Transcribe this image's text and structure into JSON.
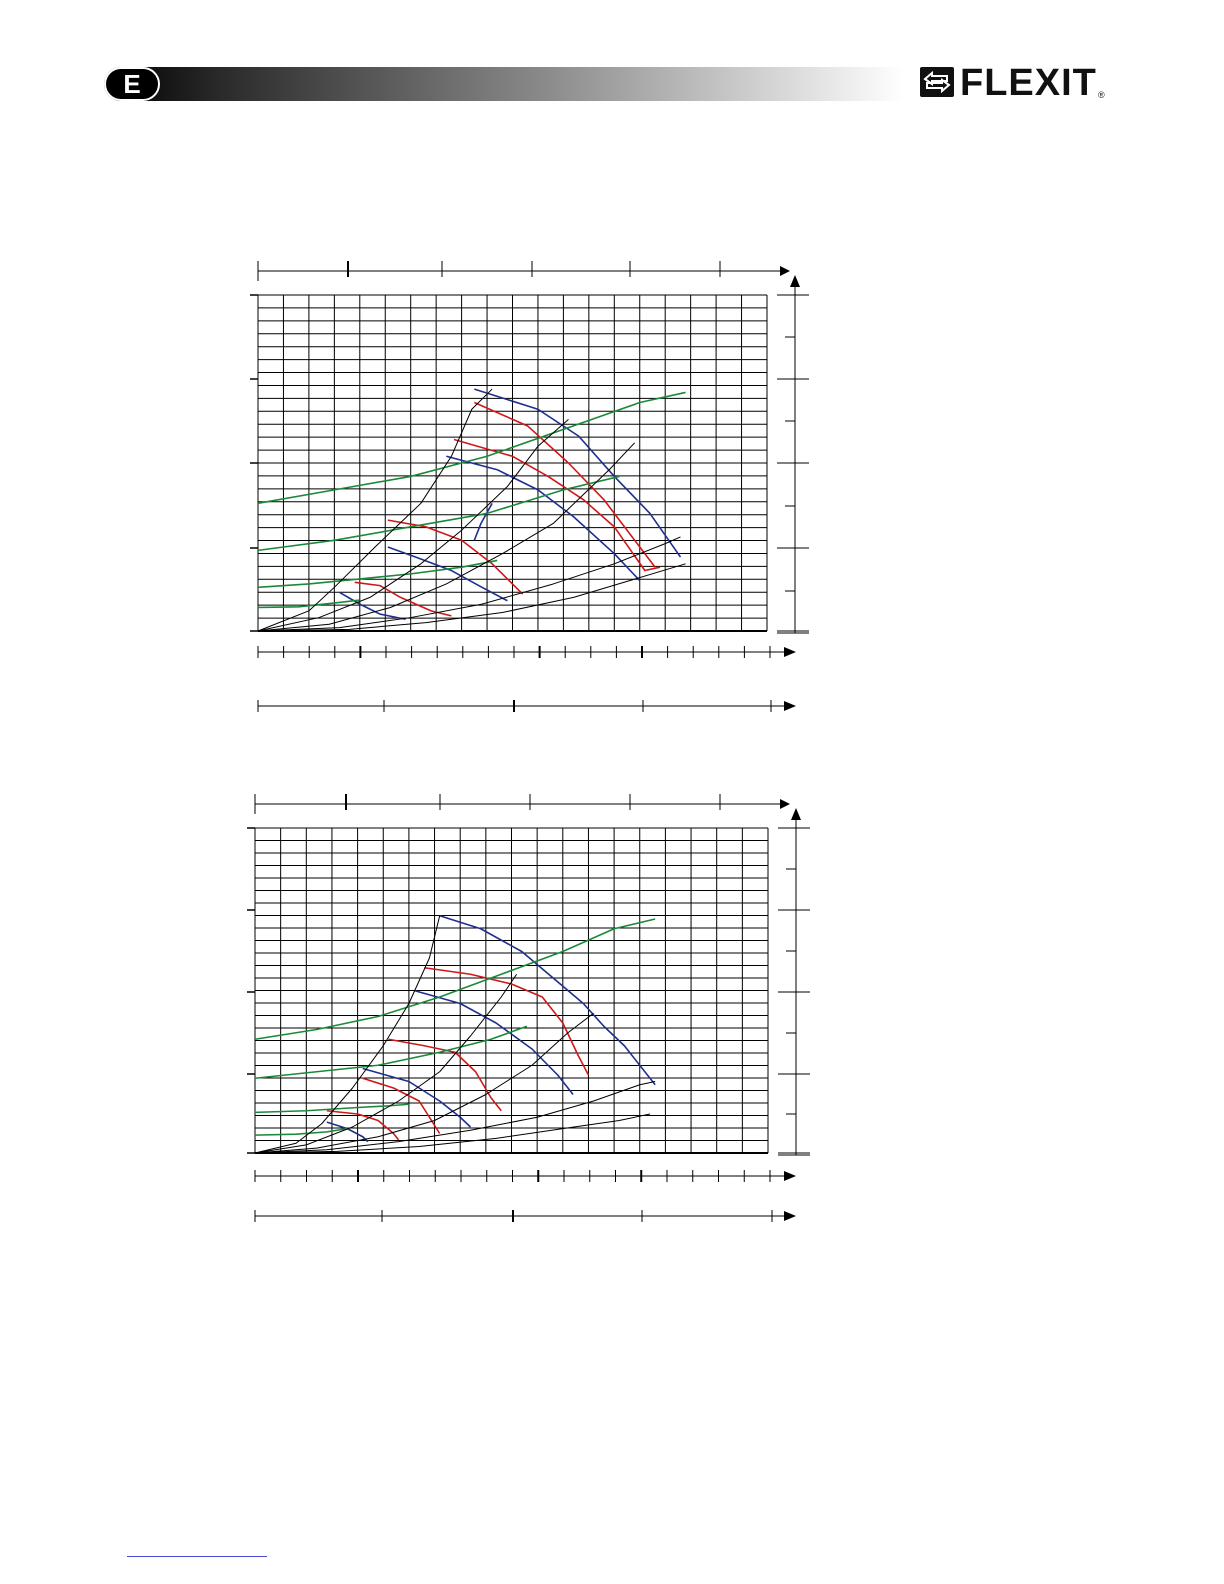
{
  "header": {
    "language_badge": "E",
    "brand_name": "FLEXIT",
    "brand_mark": "®",
    "logo_icon": "exchange-arrows-icon"
  },
  "colors": {
    "grid": "#000000",
    "system_lines": "#000000",
    "pressure_curves_a": "#1f2f8f",
    "pressure_curves_b": "#d01818",
    "power_curves": "#1a8a3a"
  },
  "chart_data": [
    {
      "type": "line",
      "title": "",
      "xlabel": "",
      "ylabel": "",
      "xlim": [
        0,
        1
      ],
      "ylim": [
        0,
        1
      ],
      "grid": true,
      "series": [
        {
          "kind": "speed-blue",
          "points": [
            [
              0.425,
              0.27
            ],
            [
              0.438,
              0.32
            ],
            [
              0.46,
              0.38
            ]
          ]
        },
        {
          "kind": "speed-blue",
          "points": [
            [
              0.16,
              0.115
            ],
            [
              0.2,
              0.08
            ],
            [
              0.24,
              0.05
            ],
            [
              0.29,
              0.035
            ]
          ]
        },
        {
          "kind": "speed-red",
          "points": [
            [
              0.19,
              0.145
            ],
            [
              0.24,
              0.135
            ],
            [
              0.28,
              0.1
            ],
            [
              0.34,
              0.06
            ],
            [
              0.38,
              0.045
            ]
          ]
        },
        {
          "kind": "speed-blue",
          "points": [
            [
              0.255,
              0.25
            ],
            [
              0.31,
              0.22
            ],
            [
              0.38,
              0.18
            ],
            [
              0.44,
              0.13
            ],
            [
              0.49,
              0.09
            ]
          ]
        },
        {
          "kind": "speed-red",
          "points": [
            [
              0.255,
              0.33
            ],
            [
              0.33,
              0.31
            ],
            [
              0.4,
              0.27
            ],
            [
              0.46,
              0.2
            ],
            [
              0.52,
              0.11
            ]
          ]
        },
        {
          "kind": "speed-blue",
          "points": [
            [
              0.37,
              0.52
            ],
            [
              0.47,
              0.48
            ],
            [
              0.55,
              0.42
            ],
            [
              0.62,
              0.34
            ],
            [
              0.7,
              0.23
            ],
            [
              0.75,
              0.15
            ]
          ]
        },
        {
          "kind": "speed-red",
          "points": [
            [
              0.385,
              0.57
            ],
            [
              0.5,
              0.52
            ],
            [
              0.57,
              0.46
            ],
            [
              0.64,
              0.39
            ],
            [
              0.7,
              0.31
            ],
            [
              0.76,
              0.18
            ],
            [
              0.79,
              0.19
            ]
          ]
        },
        {
          "kind": "speed-blue",
          "points": [
            [
              0.425,
              0.72
            ],
            [
              0.55,
              0.66
            ],
            [
              0.63,
              0.58
            ],
            [
              0.7,
              0.46
            ],
            [
              0.77,
              0.35
            ],
            [
              0.83,
              0.22
            ]
          ]
        },
        {
          "kind": "speed-red",
          "points": [
            [
              0.425,
              0.68
            ],
            [
              0.53,
              0.61
            ],
            [
              0.61,
              0.5
            ],
            [
              0.68,
              0.39
            ],
            [
              0.74,
              0.27
            ],
            [
              0.78,
              0.19
            ]
          ]
        },
        {
          "kind": "power",
          "points": [
            [
              0,
              0.07
            ],
            [
              0.08,
              0.072
            ],
            [
              0.16,
              0.085
            ],
            [
              0.2,
              0.092
            ]
          ]
        },
        {
          "kind": "power",
          "points": [
            [
              0,
              0.13
            ],
            [
              0.1,
              0.14
            ],
            [
              0.2,
              0.155
            ],
            [
              0.3,
              0.17
            ],
            [
              0.4,
              0.19
            ],
            [
              0.47,
              0.21
            ]
          ]
        },
        {
          "kind": "power",
          "points": [
            [
              0,
              0.24
            ],
            [
              0.15,
              0.27
            ],
            [
              0.3,
              0.31
            ],
            [
              0.45,
              0.35
            ],
            [
              0.6,
              0.42
            ],
            [
              0.71,
              0.46
            ]
          ]
        },
        {
          "kind": "power",
          "points": [
            [
              0,
              0.38
            ],
            [
              0.15,
              0.42
            ],
            [
              0.3,
              0.46
            ],
            [
              0.45,
              0.52
            ],
            [
              0.6,
              0.6
            ],
            [
              0.75,
              0.68
            ],
            [
              0.84,
              0.71
            ]
          ]
        },
        {
          "kind": "system",
          "points": [
            [
              0,
              0
            ],
            [
              0.1,
              0.06
            ],
            [
              0.15,
              0.13
            ],
            [
              0.23,
              0.25
            ],
            [
              0.32,
              0.38
            ],
            [
              0.38,
              0.52
            ],
            [
              0.42,
              0.66
            ],
            [
              0.46,
              0.72
            ]
          ]
        },
        {
          "kind": "system",
          "points": [
            [
              0,
              0
            ],
            [
              0.12,
              0.04
            ],
            [
              0.22,
              0.1
            ],
            [
              0.32,
              0.2
            ],
            [
              0.4,
              0.3
            ],
            [
              0.49,
              0.43
            ],
            [
              0.55,
              0.55
            ],
            [
              0.61,
              0.63
            ]
          ]
        },
        {
          "kind": "system",
          "points": [
            [
              0,
              0
            ],
            [
              0.14,
              0.02
            ],
            [
              0.26,
              0.07
            ],
            [
              0.37,
              0.14
            ],
            [
              0.48,
              0.23
            ],
            [
              0.58,
              0.32
            ],
            [
              0.69,
              0.48
            ],
            [
              0.74,
              0.56
            ]
          ]
        },
        {
          "kind": "system",
          "points": [
            [
              0,
              0
            ],
            [
              0.16,
              0.01
            ],
            [
              0.3,
              0.04
            ],
            [
              0.44,
              0.08
            ],
            [
              0.58,
              0.14
            ],
            [
              0.7,
              0.2
            ],
            [
              0.8,
              0.26
            ],
            [
              0.83,
              0.28
            ]
          ]
        },
        {
          "kind": "system",
          "points": [
            [
              0,
              0
            ],
            [
              0.18,
              0.005
            ],
            [
              0.33,
              0.025
            ],
            [
              0.48,
              0.055
            ],
            [
              0.62,
              0.1
            ],
            [
              0.73,
              0.15
            ],
            [
              0.84,
              0.2
            ]
          ]
        }
      ]
    },
    {
      "type": "line",
      "title": "",
      "xlabel": "",
      "ylabel": "",
      "xlim": [
        0,
        1
      ],
      "ylim": [
        0,
        1
      ],
      "grid": true,
      "series": [
        {
          "kind": "speed-blue",
          "points": [
            [
              0.14,
              0.095
            ],
            [
              0.18,
              0.075
            ],
            [
              0.21,
              0.05
            ],
            [
              0.22,
              0.035
            ]
          ]
        },
        {
          "kind": "speed-red",
          "points": [
            [
              0.14,
              0.13
            ],
            [
              0.2,
              0.12
            ],
            [
              0.24,
              0.1
            ],
            [
              0.27,
              0.06
            ],
            [
              0.28,
              0.04
            ]
          ]
        },
        {
          "kind": "speed-blue",
          "points": [
            [
              0.21,
              0.26
            ],
            [
              0.3,
              0.22
            ],
            [
              0.36,
              0.16
            ],
            [
              0.4,
              0.11
            ],
            [
              0.42,
              0.08
            ]
          ]
        },
        {
          "kind": "speed-red",
          "points": [
            [
              0.21,
              0.23
            ],
            [
              0.27,
              0.2
            ],
            [
              0.32,
              0.16
            ],
            [
              0.34,
              0.11
            ],
            [
              0.36,
              0.06
            ]
          ]
        },
        {
          "kind": "speed-red",
          "points": [
            [
              0.26,
              0.35
            ],
            [
              0.33,
              0.33
            ],
            [
              0.39,
              0.31
            ],
            [
              0.43,
              0.25
            ],
            [
              0.46,
              0.17
            ],
            [
              0.48,
              0.13
            ]
          ]
        },
        {
          "kind": "speed-blue",
          "points": [
            [
              0.31,
              0.5
            ],
            [
              0.4,
              0.46
            ],
            [
              0.47,
              0.4
            ],
            [
              0.54,
              0.32
            ],
            [
              0.59,
              0.24
            ],
            [
              0.62,
              0.18
            ]
          ]
        },
        {
          "kind": "speed-red",
          "points": [
            [
              0.33,
              0.57
            ],
            [
              0.42,
              0.55
            ],
            [
              0.5,
              0.52
            ],
            [
              0.56,
              0.48
            ],
            [
              0.6,
              0.4
            ],
            [
              0.63,
              0.3
            ],
            [
              0.65,
              0.24
            ]
          ]
        },
        {
          "kind": "speed-blue",
          "points": [
            [
              0.36,
              0.73
            ],
            [
              0.44,
              0.69
            ],
            [
              0.52,
              0.62
            ],
            [
              0.58,
              0.54
            ],
            [
              0.64,
              0.46
            ],
            [
              0.68,
              0.39
            ],
            [
              0.72,
              0.33
            ],
            [
              0.78,
              0.21
            ]
          ]
        },
        {
          "kind": "power",
          "points": [
            [
              0,
              0.055
            ],
            [
              0.08,
              0.058
            ],
            [
              0.14,
              0.065
            ],
            [
              0.18,
              0.075
            ]
          ]
        },
        {
          "kind": "power",
          "points": [
            [
              0,
              0.125
            ],
            [
              0.1,
              0.13
            ],
            [
              0.2,
              0.14
            ],
            [
              0.26,
              0.145
            ],
            [
              0.3,
              0.15
            ]
          ]
        },
        {
          "kind": "power",
          "points": [
            [
              0,
              0.23
            ],
            [
              0.12,
              0.25
            ],
            [
              0.24,
              0.27
            ],
            [
              0.36,
              0.31
            ],
            [
              0.46,
              0.35
            ],
            [
              0.53,
              0.39
            ]
          ]
        },
        {
          "kind": "power",
          "points": [
            [
              0,
              0.35
            ],
            [
              0.12,
              0.38
            ],
            [
              0.24,
              0.42
            ],
            [
              0.36,
              0.48
            ],
            [
              0.48,
              0.55
            ],
            [
              0.6,
              0.62
            ],
            [
              0.7,
              0.69
            ],
            [
              0.78,
              0.72
            ]
          ]
        },
        {
          "kind": "system",
          "points": [
            [
              0,
              0
            ],
            [
              0.08,
              0.03
            ],
            [
              0.13,
              0.09
            ],
            [
              0.19,
              0.2
            ],
            [
              0.25,
              0.33
            ],
            [
              0.3,
              0.46
            ],
            [
              0.34,
              0.6
            ],
            [
              0.36,
              0.73
            ]
          ]
        },
        {
          "kind": "system",
          "points": [
            [
              0,
              0
            ],
            [
              0.1,
              0.025
            ],
            [
              0.19,
              0.08
            ],
            [
              0.28,
              0.16
            ],
            [
              0.36,
              0.25
            ],
            [
              0.42,
              0.36
            ],
            [
              0.48,
              0.48
            ],
            [
              0.51,
              0.55
            ]
          ]
        },
        {
          "kind": "system",
          "points": [
            [
              0,
              0
            ],
            [
              0.12,
              0.015
            ],
            [
              0.24,
              0.05
            ],
            [
              0.35,
              0.1
            ],
            [
              0.45,
              0.18
            ],
            [
              0.54,
              0.27
            ],
            [
              0.61,
              0.37
            ],
            [
              0.66,
              0.43
            ]
          ]
        },
        {
          "kind": "system",
          "points": [
            [
              0,
              0
            ],
            [
              0.14,
              0.01
            ],
            [
              0.28,
              0.035
            ],
            [
              0.42,
              0.07
            ],
            [
              0.55,
              0.11
            ],
            [
              0.66,
              0.16
            ],
            [
              0.75,
              0.21
            ],
            [
              0.78,
              0.22
            ]
          ]
        },
        {
          "kind": "system",
          "points": [
            [
              0,
              0
            ],
            [
              0.16,
              0.005
            ],
            [
              0.32,
              0.02
            ],
            [
              0.47,
              0.045
            ],
            [
              0.6,
              0.075
            ],
            [
              0.71,
              0.1
            ],
            [
              0.77,
              0.12
            ]
          ]
        }
      ]
    }
  ]
}
